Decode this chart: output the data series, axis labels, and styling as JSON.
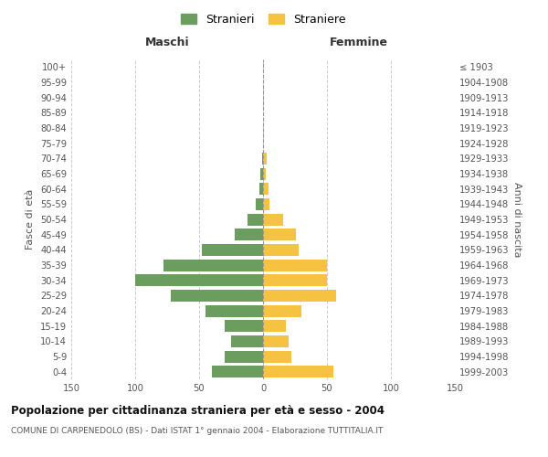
{
  "age_groups": [
    "0-4",
    "5-9",
    "10-14",
    "15-19",
    "20-24",
    "25-29",
    "30-34",
    "35-39",
    "40-44",
    "45-49",
    "50-54",
    "55-59",
    "60-64",
    "65-69",
    "70-74",
    "75-79",
    "80-84",
    "85-89",
    "90-94",
    "95-99",
    "100+"
  ],
  "birth_years": [
    "1999-2003",
    "1994-1998",
    "1989-1993",
    "1984-1988",
    "1979-1983",
    "1974-1978",
    "1969-1973",
    "1964-1968",
    "1959-1963",
    "1954-1958",
    "1949-1953",
    "1944-1948",
    "1939-1943",
    "1934-1938",
    "1929-1933",
    "1924-1928",
    "1919-1923",
    "1914-1918",
    "1909-1913",
    "1904-1908",
    "≤ 1903"
  ],
  "maschi": [
    40,
    30,
    25,
    30,
    45,
    72,
    100,
    78,
    48,
    22,
    12,
    6,
    3,
    2,
    1,
    0,
    0,
    0,
    0,
    0,
    0
  ],
  "femmine": [
    55,
    22,
    20,
    18,
    30,
    57,
    50,
    50,
    28,
    26,
    16,
    5,
    4,
    2,
    3,
    0,
    0,
    0,
    0,
    0,
    0
  ],
  "color_maschi": "#6b9e5e",
  "color_femmine": "#f5c242",
  "title": "Popolazione per cittadinanza straniera per età e sesso - 2004",
  "subtitle": "COMUNE DI CARPENEDOLO (BS) - Dati ISTAT 1° gennaio 2004 - Elaborazione TUTTITALIA.IT",
  "legend_maschi": "Stranieri",
  "legend_femmine": "Straniere",
  "ylabel_left": "Fasce di età",
  "ylabel_right": "Anni di nascita",
  "xlabel_maschi": "Maschi",
  "xlabel_femmine": "Femmine",
  "xlim": 150,
  "background_color": "#ffffff",
  "grid_color": "#cccccc"
}
